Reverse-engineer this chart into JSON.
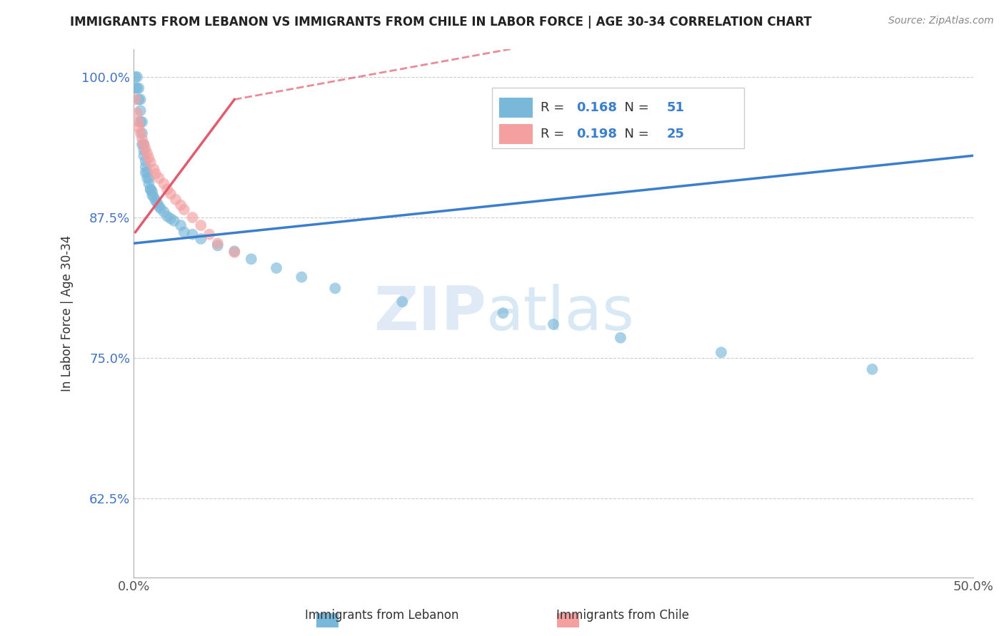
{
  "title": "IMMIGRANTS FROM LEBANON VS IMMIGRANTS FROM CHILE IN LABOR FORCE | AGE 30-34 CORRELATION CHART",
  "source": "Source: ZipAtlas.com",
  "ylabel": "In Labor Force | Age 30-34",
  "legend_label1": "Immigrants from Lebanon",
  "legend_label2": "Immigrants from Chile",
  "xlim": [
    0.0,
    0.5
  ],
  "ylim": [
    0.555,
    1.025
  ],
  "yticks": [
    0.625,
    0.75,
    0.875,
    1.0
  ],
  "ytick_labels": [
    "62.5%",
    "75.0%",
    "87.5%",
    "100.0%"
  ],
  "xtick_positions": [
    0.0,
    0.1,
    0.2,
    0.3,
    0.4,
    0.5
  ],
  "xtick_labels": [
    "0.0%",
    "",
    "",
    "",
    "",
    "50.0%"
  ],
  "lebanon_R": 0.168,
  "lebanon_N": 51,
  "chile_R": 0.198,
  "chile_N": 25,
  "lebanon_color": "#7ab8d9",
  "chile_color": "#f4a0a0",
  "lebanon_line_color": "#3b7fcc",
  "chile_line_color": "#e05c6e",
  "watermark1": "ZIP",
  "watermark2": "atlas",
  "lebanon_x": [
    0.001,
    0.002,
    0.003,
    0.003,
    0.004,
    0.004,
    0.005,
    0.005,
    0.006,
    0.006,
    0.007,
    0.007,
    0.007,
    0.008,
    0.008,
    0.008,
    0.009,
    0.009,
    0.01,
    0.01,
    0.011,
    0.011,
    0.012,
    0.013,
    0.013,
    0.014,
    0.015,
    0.016,
    0.017,
    0.018,
    0.02,
    0.021,
    0.022,
    0.023,
    0.024,
    0.025,
    0.03,
    0.032,
    0.034,
    0.04,
    0.045,
    0.055,
    0.06,
    0.065,
    0.075,
    0.085,
    0.11,
    0.13,
    0.155,
    0.175,
    0.215
  ],
  "lebanon_y": [
    1.0,
    1.0,
    1.0,
    1.0,
    1.0,
    1.0,
    0.96,
    0.95,
    0.94,
    0.93,
    0.92,
    0.92,
    0.91,
    0.91,
    0.91,
    0.9,
    0.9,
    0.895,
    0.89,
    0.89,
    0.885,
    0.88,
    0.88,
    0.875,
    0.87,
    0.87,
    0.865,
    0.865,
    0.86,
    0.86,
    0.86,
    0.855,
    0.855,
    0.855,
    0.85,
    0.85,
    0.848,
    0.845,
    0.84,
    0.838,
    0.835,
    0.83,
    0.828,
    0.822,
    0.82,
    0.815,
    0.812,
    0.808,
    0.805,
    0.8,
    0.795
  ],
  "chile_x": [
    0.001,
    0.002,
    0.003,
    0.003,
    0.004,
    0.005,
    0.006,
    0.007,
    0.008,
    0.009,
    0.01,
    0.011,
    0.012,
    0.013,
    0.015,
    0.017,
    0.02,
    0.022,
    0.025,
    0.028,
    0.03,
    0.035,
    0.04,
    0.05,
    0.06
  ],
  "chile_y": [
    0.96,
    0.95,
    0.94,
    0.935,
    0.93,
    0.92,
    0.915,
    0.91,
    0.905,
    0.9,
    0.895,
    0.89,
    0.888,
    0.885,
    0.882,
    0.878,
    0.875,
    0.87,
    0.868,
    0.865,
    0.86,
    0.858,
    0.855,
    0.85,
    0.848
  ]
}
